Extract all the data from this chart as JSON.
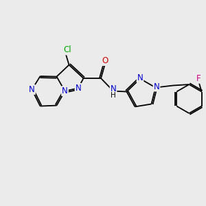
{
  "background_color": "#ebebeb",
  "bond_color": "#000000",
  "atom_colors": {
    "N": "#0000cc",
    "O": "#cc0000",
    "Cl": "#00aa00",
    "F": "#cc0088",
    "C": "#000000",
    "H": "#000000"
  },
  "font_size": 8.5,
  "line_width": 1.3,
  "figsize": [
    3.0,
    3.0
  ],
  "dpi": 100
}
